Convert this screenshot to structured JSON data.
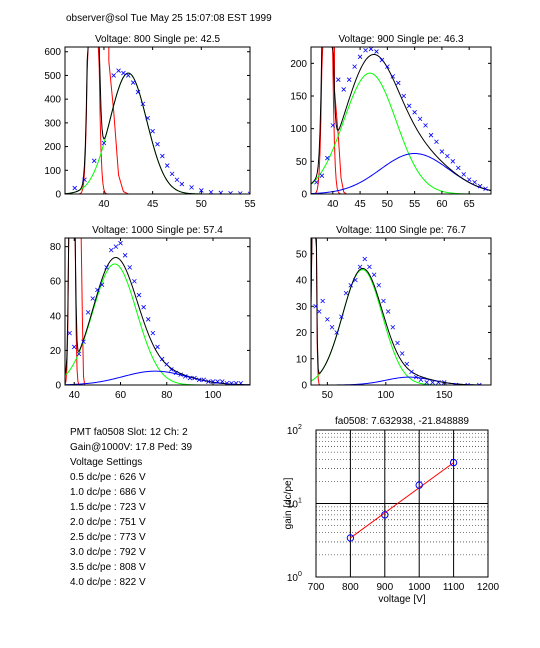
{
  "header": "observer@sol  Tue May 25 15:07:08 EST 1999",
  "info": {
    "pmt": "PMT fa0508 Slot: 12 Ch: 2",
    "gain": "Gain@1000V: 17.8 Ped: 39",
    "heading": "Voltage Settings",
    "settings": [
      "0.5 dc/pe : 626 V",
      "1.0 dc/pe : 686 V",
      "1.5 dc/pe : 723 V",
      "2.0 dc/pe : 751 V",
      "2.5 dc/pe : 773 V",
      "3.0 dc/pe : 792 V",
      "3.5 dc/pe : 808 V",
      "4.0 dc/pe : 822 V"
    ]
  },
  "colors": {
    "data": "#0000ff",
    "total": "#000000",
    "signal": "#00ff00",
    "pedestal": "#ff0000",
    "second": "#0000ff",
    "fit": "#ff0000"
  },
  "chart_data": [
    {
      "type": "scatter",
      "title": "Voltage: 800 Single pe: 42.5",
      "xlim": [
        36,
        55
      ],
      "ylim": [
        0,
        620
      ],
      "xticks": [
        40,
        45,
        50,
        55
      ],
      "yticks": [
        0,
        100,
        200,
        300,
        400,
        500,
        600
      ],
      "points": [
        [
          37,
          25
        ],
        [
          38,
          60
        ],
        [
          39,
          140
        ],
        [
          40,
          215
        ],
        [
          41,
          500
        ],
        [
          41.5,
          520
        ],
        [
          42,
          510
        ],
        [
          42.5,
          500
        ],
        [
          43,
          470
        ],
        [
          43.5,
          430
        ],
        [
          44,
          380
        ],
        [
          44.5,
          320
        ],
        [
          45,
          265
        ],
        [
          45.5,
          210
        ],
        [
          46,
          160
        ],
        [
          46.5,
          120
        ],
        [
          47,
          85
        ],
        [
          47.5,
          60
        ],
        [
          48,
          42
        ],
        [
          49,
          28
        ],
        [
          50,
          15
        ],
        [
          51,
          8
        ],
        [
          52,
          5
        ],
        [
          53,
          3
        ],
        [
          54,
          2
        ],
        [
          55,
          1
        ]
      ],
      "pedestal": {
        "amp": 2500,
        "mean": 38.9,
        "sigma": 0.35
      },
      "pedestal_tail": [
        [
          40.5,
          560
        ],
        [
          41,
          350
        ],
        [
          41.5,
          80
        ],
        [
          42,
          10
        ],
        [
          42.5,
          0
        ]
      ],
      "signal": {
        "amp": 510,
        "mean": 42.5,
        "sigma": 1.9
      }
    },
    {
      "type": "scatter",
      "title": "Voltage: 900 Single pe: 46.3",
      "xlim": [
        36,
        69
      ],
      "ylim": [
        0,
        225
      ],
      "xticks": [
        40,
        45,
        50,
        55,
        60,
        65
      ],
      "yticks": [
        0,
        50,
        100,
        150,
        200
      ],
      "points": [
        [
          37,
          18
        ],
        [
          38,
          28
        ],
        [
          39,
          55
        ],
        [
          40,
          105
        ],
        [
          41,
          175
        ],
        [
          42,
          160
        ],
        [
          43,
          175
        ],
        [
          44,
          195
        ],
        [
          45,
          210
        ],
        [
          46,
          220
        ],
        [
          47,
          222
        ],
        [
          48,
          218
        ],
        [
          49,
          205
        ],
        [
          50,
          195
        ],
        [
          51,
          180
        ],
        [
          52,
          170
        ],
        [
          53,
          150
        ],
        [
          54,
          135
        ],
        [
          55,
          125
        ],
        [
          56,
          115
        ],
        [
          57,
          105
        ],
        [
          58,
          90
        ],
        [
          59,
          80
        ],
        [
          60,
          65
        ],
        [
          61,
          58
        ],
        [
          62,
          50
        ],
        [
          63,
          40
        ],
        [
          64,
          30
        ],
        [
          65,
          22
        ],
        [
          66,
          18
        ],
        [
          67,
          12
        ],
        [
          68,
          8
        ]
      ],
      "pedestal": {
        "amp": 800,
        "mean": 39,
        "sigma": 0.6
      },
      "pedestal_tail": [
        [
          40.3,
          160
        ],
        [
          41,
          90
        ],
        [
          41.5,
          25
        ],
        [
          42,
          3
        ],
        [
          42.5,
          0
        ]
      ],
      "signal": {
        "amp": 185,
        "mean": 46.8,
        "sigma": 4.8
      },
      "second": {
        "amp": 62,
        "mean": 55,
        "sigma": 6.3
      }
    },
    {
      "type": "scatter",
      "title": "Voltage: 1000 Single pe: 57.4",
      "xlim": [
        36,
        116
      ],
      "ylim": [
        0,
        85
      ],
      "xticks": [
        40,
        60,
        80,
        100
      ],
      "yticks": [
        0,
        20,
        40,
        60,
        80
      ],
      "points": [
        [
          38,
          30
        ],
        [
          40,
          22
        ],
        [
          42,
          18
        ],
        [
          44,
          25
        ],
        [
          46,
          42
        ],
        [
          48,
          50
        ],
        [
          50,
          55
        ],
        [
          52,
          58
        ],
        [
          54,
          68
        ],
        [
          56,
          78
        ],
        [
          58,
          80
        ],
        [
          60,
          82
        ],
        [
          62,
          75
        ],
        [
          64,
          68
        ],
        [
          66,
          60
        ],
        [
          68,
          52
        ],
        [
          70,
          45
        ],
        [
          72,
          38
        ],
        [
          74,
          30
        ],
        [
          76,
          22
        ],
        [
          78,
          15
        ],
        [
          80,
          12
        ],
        [
          82,
          9
        ],
        [
          84,
          7
        ],
        [
          86,
          6
        ],
        [
          88,
          5
        ],
        [
          90,
          4
        ],
        [
          92,
          4
        ],
        [
          94,
          3
        ],
        [
          96,
          3
        ],
        [
          98,
          2
        ],
        [
          100,
          2
        ],
        [
          102,
          2
        ],
        [
          104,
          2
        ],
        [
          106,
          1
        ],
        [
          108,
          1
        ],
        [
          110,
          1
        ],
        [
          112,
          1
        ]
      ],
      "pedestal": {
        "amp": 400,
        "mean": 39,
        "sigma": 0.8
      },
      "pedestal_tail": [
        [
          43,
          85
        ],
        [
          43.5,
          40
        ],
        [
          44,
          5
        ],
        [
          44.5,
          0
        ]
      ],
      "signal": {
        "amp": 70,
        "mean": 57.5,
        "sigma": 9.5
      },
      "second": {
        "amp": 8,
        "mean": 75,
        "sigma": 14
      }
    },
    {
      "type": "scatter",
      "title": "Voltage: 1100 Single pe: 76.7",
      "xlim": [
        36,
        190
      ],
      "ylim": [
        0,
        56
      ],
      "xticks": [
        50,
        100,
        150
      ],
      "yticks": [
        0,
        10,
        20,
        30,
        40,
        50
      ],
      "points": [
        [
          40,
          30
        ],
        [
          43,
          28
        ],
        [
          46,
          32
        ],
        [
          50,
          25
        ],
        [
          54,
          22
        ],
        [
          58,
          20
        ],
        [
          62,
          26
        ],
        [
          66,
          35
        ],
        [
          70,
          38
        ],
        [
          74,
          40
        ],
        [
          78,
          45
        ],
        [
          82,
          48
        ],
        [
          86,
          45
        ],
        [
          90,
          42
        ],
        [
          94,
          38
        ],
        [
          98,
          32
        ],
        [
          102,
          28
        ],
        [
          106,
          22
        ],
        [
          110,
          16
        ],
        [
          114,
          12
        ],
        [
          118,
          8
        ],
        [
          122,
          5
        ],
        [
          126,
          3
        ],
        [
          130,
          2
        ],
        [
          135,
          1
        ],
        [
          140,
          1
        ],
        [
          145,
          1
        ],
        [
          150,
          1
        ],
        [
          160,
          0
        ],
        [
          170,
          0
        ],
        [
          180,
          0
        ]
      ],
      "pedestal": {
        "amp": 250,
        "mean": 38.5,
        "sigma": 1.2
      },
      "signal": {
        "amp": 44,
        "mean": 80,
        "sigma": 17
      },
      "second": {
        "amp": 3,
        "mean": 120,
        "sigma": 20
      }
    },
    {
      "type": "line",
      "title": "fa0508: 7.632938, -21.848889",
      "xlabel": "voltage [V]",
      "ylabel": "gain [dc/pe]",
      "xlim": [
        700,
        1200
      ],
      "ylim": [
        1,
        100
      ],
      "xscale": "linear",
      "yscale": "log",
      "grid": "dotted",
      "xticks": [
        700,
        800,
        900,
        1000,
        1100,
        1200
      ],
      "ytick_labels": [
        {
          "base": "10",
          "exp": "0",
          "value": 1
        },
        {
          "base": "10",
          "exp": "1",
          "value": 10
        },
        {
          "base": "10",
          "exp": "2",
          "value": 100
        }
      ],
      "measured": [
        [
          800,
          3.4
        ],
        [
          900,
          7.0
        ],
        [
          1000,
          17.8
        ],
        [
          1100,
          36.0
        ]
      ],
      "fit": [
        [
          800,
          3.4
        ],
        [
          1100,
          36.0
        ]
      ]
    }
  ]
}
